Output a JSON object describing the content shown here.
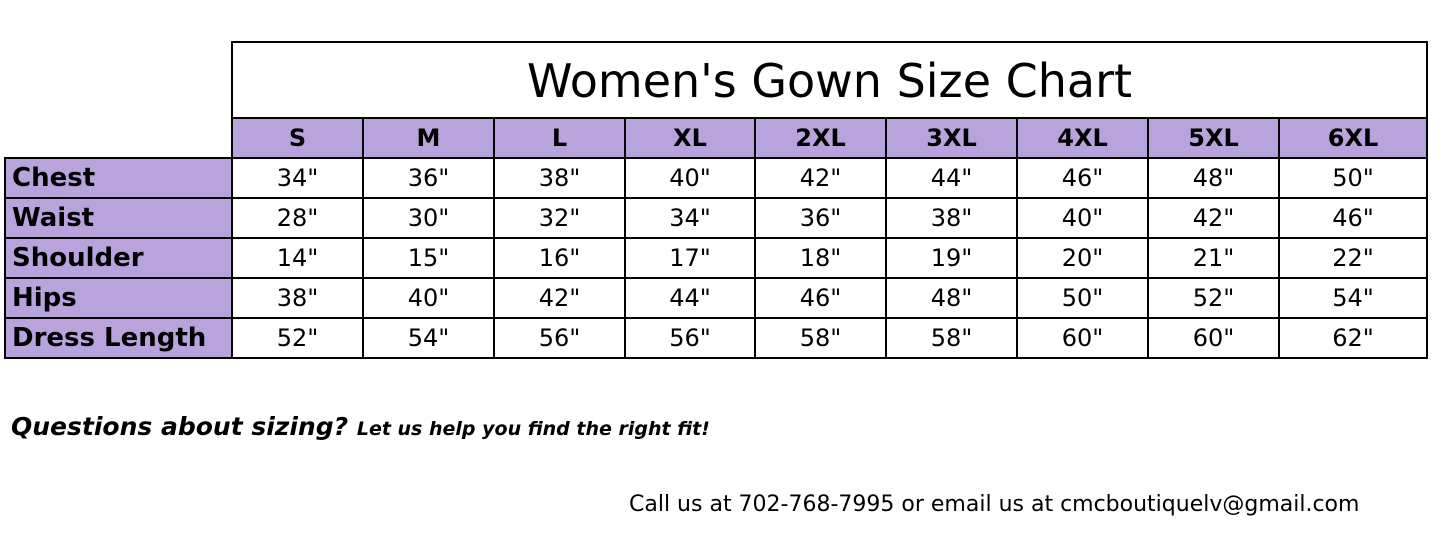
{
  "title": "Women's Gown Size Chart",
  "colors": {
    "header_fill": "#b9a3dc",
    "border": "#000000"
  },
  "table": {
    "columns": [
      "S",
      "M",
      "L",
      "XL",
      "2XL",
      "3XL",
      "4XL",
      "5XL",
      "6XL"
    ],
    "rows": [
      {
        "label": "Chest",
        "values": [
          "34\"",
          "36\"",
          "38\"",
          "40\"",
          "42\"",
          "44\"",
          "46\"",
          "48\"",
          "50\""
        ]
      },
      {
        "label": "Waist",
        "values": [
          "28\"",
          "30\"",
          "32\"",
          "34\"",
          "36\"",
          "38\"",
          "40\"",
          "42\"",
          "46\""
        ]
      },
      {
        "label": "Shoulder",
        "values": [
          "14\"",
          "15\"",
          "16\"",
          "17\"",
          "18\"",
          "19\"",
          "20\"",
          "21\"",
          "22\""
        ]
      },
      {
        "label": "Hips",
        "values": [
          "38\"",
          "40\"",
          "42\"",
          "44\"",
          "46\"",
          "48\"",
          "50\"",
          "52\"",
          "54\""
        ]
      },
      {
        "label": "Dress Length",
        "values": [
          "52\"",
          "54\"",
          "56\"",
          "56\"",
          "58\"",
          "58\"",
          "60\"",
          "60\"",
          "62\""
        ]
      }
    ]
  },
  "footer": {
    "question": "Questions about sizing?",
    "help": "Let us help you find the right fit!",
    "contact": "Call us at 702-768-7995 or email us at cmcboutiquelv@gmail.com"
  }
}
